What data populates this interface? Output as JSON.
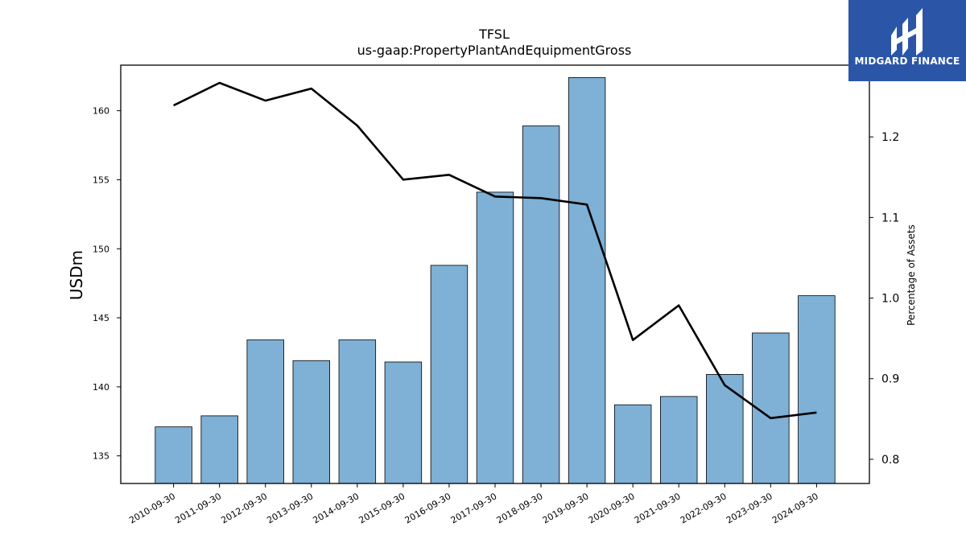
{
  "logo": {
    "text": "MIDGARD FINANCE"
  },
  "chart_data": {
    "type": "bar",
    "title": "TFSL",
    "subtitle": "us-gaap:PropertyPlantAndEquipmentGross",
    "ylabel": "USDm",
    "y2label": "Percentage of Assets",
    "categories": [
      "2010-09-30",
      "2011-09-30",
      "2012-09-30",
      "2013-09-30",
      "2014-09-30",
      "2015-09-30",
      "2016-09-30",
      "2017-09-30",
      "2018-09-30",
      "2019-09-30",
      "2020-09-30",
      "2021-09-30",
      "2022-09-30",
      "2023-09-30",
      "2024-09-30"
    ],
    "series": [
      {
        "type": "bar",
        "axis": "left",
        "color": "#7fb0d5",
        "values": [
          137.1,
          137.9,
          143.4,
          141.9,
          143.4,
          141.8,
          148.8,
          154.1,
          158.9,
          162.4,
          138.7,
          139.3,
          140.9,
          143.9,
          146.6
        ]
      },
      {
        "type": "line",
        "axis": "right",
        "color": "#000000",
        "values": [
          1.239,
          1.267,
          1.245,
          1.26,
          1.214,
          1.147,
          1.153,
          1.126,
          1.124,
          1.116,
          0.948,
          0.991,
          0.892,
          0.851,
          0.858
        ]
      }
    ],
    "ylim": [
      133,
      163.3
    ],
    "y_ticks": [
      135,
      140,
      145,
      150,
      155,
      160
    ],
    "y2lim": [
      0.77,
      1.289
    ],
    "y2_ticks": [
      "0.8",
      "0.9",
      "1.0",
      "1.1",
      "1.2"
    ],
    "grid": false,
    "legend": "none"
  }
}
